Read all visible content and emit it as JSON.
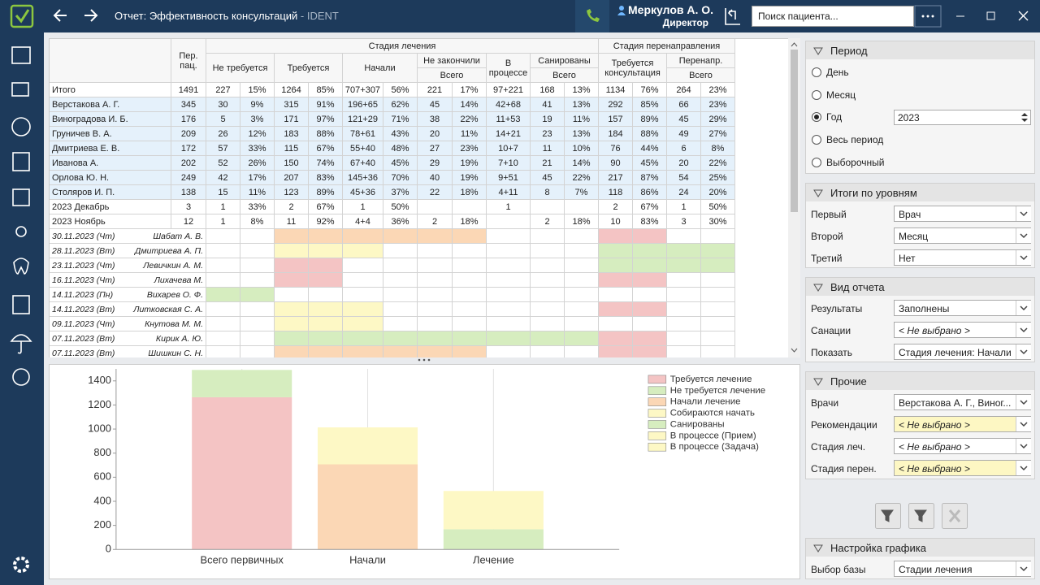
{
  "header": {
    "title": "Отчет: Эффективность консультаций",
    "suffix": "- IDENT",
    "user": "Меркулов А. О.",
    "role": "Директор",
    "search": "Поиск пациента..."
  },
  "table": {
    "head": {
      "per_patients": "Пер. пац.",
      "treatment": "Стадия лечения",
      "redirect": "Стадия перенаправления",
      "not_required": "Не требуется",
      "required": "Требуется",
      "started": "Начали",
      "not_finished": "Не закончили",
      "in_progress": "В процессе",
      "sanitized": "Санированы",
      "consultation": "Требуется консультация",
      "redirected": "Перенапр.",
      "total": "Всего"
    },
    "rows": [
      {
        "name": "Итого",
        "cells": [
          1491,
          227,
          "15%",
          1264,
          "85%",
          "707+307",
          "56%",
          221,
          "17%",
          "97+221",
          168,
          "13%",
          1134,
          "76%",
          264,
          "23%"
        ]
      },
      {
        "name": "Верстакова А. Г.",
        "cells": [
          345,
          30,
          "9%",
          315,
          "91%",
          "196+65",
          "62%",
          45,
          "14%",
          "42+68",
          41,
          "13%",
          292,
          "85%",
          66,
          "23%"
        ]
      },
      {
        "name": "Виноградова И. Б.",
        "cells": [
          176,
          5,
          "3%",
          171,
          "97%",
          "121+29",
          "71%",
          38,
          "22%",
          "11+53",
          19,
          "11%",
          157,
          "89%",
          45,
          "29%"
        ]
      },
      {
        "name": "Груничев В. А.",
        "cells": [
          209,
          26,
          "12%",
          183,
          "88%",
          "78+61",
          "43%",
          20,
          "11%",
          "14+21",
          23,
          "13%",
          184,
          "88%",
          49,
          "27%"
        ]
      },
      {
        "name": "Дмитриева Е. В.",
        "cells": [
          172,
          57,
          "33%",
          115,
          "67%",
          "55+40",
          "48%",
          27,
          "23%",
          "10+7",
          11,
          "10%",
          76,
          "44%",
          6,
          "8%"
        ]
      },
      {
        "name": "Иванова А.",
        "cells": [
          202,
          52,
          "26%",
          150,
          "74%",
          "67+40",
          "45%",
          29,
          "19%",
          "7+10",
          21,
          "14%",
          90,
          "45%",
          20,
          "22%"
        ]
      },
      {
        "name": "Орлова Ю. Н.",
        "cells": [
          249,
          42,
          "17%",
          207,
          "83%",
          "145+36",
          "70%",
          40,
          "19%",
          "9+51",
          45,
          "22%",
          217,
          "87%",
          54,
          "25%"
        ]
      },
      {
        "name": "Столяров И. П.",
        "cells": [
          138,
          15,
          "11%",
          123,
          "89%",
          "45+36",
          "37%",
          22,
          "18%",
          "4+11",
          8,
          "7%",
          118,
          "86%",
          24,
          "20%"
        ]
      },
      {
        "name": "2023 Декабрь",
        "cells": [
          3,
          1,
          "33%",
          2,
          "67%",
          1,
          "50%",
          null,
          null,
          1,
          null,
          null,
          2,
          "67%",
          1,
          "50%"
        ]
      },
      {
        "name": "2023 Ноябрь",
        "cells": [
          12,
          1,
          "8%",
          11,
          "92%",
          "4+4",
          "36%",
          2,
          "18%",
          null,
          2,
          "18%",
          10,
          "83%",
          3,
          "30%"
        ]
      }
    ],
    "details": [
      {
        "date": "30.11.2023 (Чт)",
        "doctor": "Шабат А. В.",
        "fills": [
          null,
          null,
          null,
          "#fbd7b5",
          "#fbd7b5",
          "#fbd7b5",
          "#fbd7b5",
          "#fbd7b5",
          "#fbd7b5",
          null,
          null,
          null,
          "#f4c4c4",
          "#f4c4c4",
          null,
          null
        ]
      },
      {
        "date": "28.11.2023 (Вт)",
        "doctor": "Дмитриева А. П.",
        "fills": [
          null,
          null,
          null,
          "#fdf8c5",
          "#fdf8c5",
          "#fdf8c5",
          null,
          null,
          null,
          null,
          null,
          null,
          "#d6edbf",
          "#d6edbf",
          "#d6edbf",
          "#d6edbf"
        ]
      },
      {
        "date": "23.11.2023 (Чт)",
        "doctor": "Левичкин А. М.",
        "fills": [
          null,
          null,
          null,
          "#f4c4c4",
          "#f4c4c4",
          null,
          null,
          null,
          null,
          null,
          null,
          null,
          "#d6edbf",
          "#d6edbf",
          "#d6edbf",
          "#d6edbf"
        ]
      },
      {
        "date": "16.11.2023 (Чт)",
        "doctor": "Лихачева М.",
        "fills": [
          null,
          null,
          null,
          "#f4c4c4",
          "#f4c4c4",
          null,
          null,
          null,
          null,
          null,
          null,
          null,
          "#f4c4c4",
          "#f4c4c4",
          null,
          null
        ]
      },
      {
        "date": "14.11.2023 (Пн)",
        "doctor": "Вихарев О. Ф.",
        "fills": [
          null,
          "#d6edbf",
          "#d6edbf",
          null,
          null,
          null,
          null,
          null,
          null,
          null,
          null,
          null,
          null,
          null,
          null,
          null
        ]
      },
      {
        "date": "14.11.2023 (Вт)",
        "doctor": "Литковская С. А.",
        "fills": [
          null,
          null,
          null,
          "#fdf8c5",
          "#fdf8c5",
          "#fdf8c5",
          null,
          null,
          null,
          null,
          null,
          null,
          "#f4c4c4",
          "#f4c4c4",
          null,
          null
        ]
      },
      {
        "date": "09.11.2023 (Чт)",
        "doctor": "Кнутова М. М.",
        "fills": [
          null,
          null,
          null,
          "#fdf8c5",
          "#fdf8c5",
          "#fdf8c5",
          null,
          null,
          null,
          null,
          null,
          null,
          null,
          null,
          null,
          null
        ]
      },
      {
        "date": "07.11.2023 (Вт)",
        "doctor": "Кирик А. Ю.",
        "fills": [
          null,
          null,
          null,
          "#d6edbf",
          "#d6edbf",
          "#d6edbf",
          "#d6edbf",
          "#d6edbf",
          "#d6edbf",
          "#d6edbf",
          "#d6edbf",
          "#d6edbf",
          "#f4c4c4",
          "#f4c4c4",
          null,
          null
        ]
      },
      {
        "date": "07.11.2023 (Вт)",
        "doctor": "Шишкин С. Н.",
        "fills": [
          null,
          null,
          null,
          "#fbd7b5",
          "#fbd7b5",
          "#fbd7b5",
          "#fbd7b5",
          "#fbd7b5",
          "#fbd7b5",
          null,
          null,
          null,
          "#f4c4c4",
          "#f4c4c4",
          null,
          null
        ]
      }
    ]
  },
  "chart_data": {
    "type": "bar",
    "stacked": true,
    "categories": [
      "Всего первичных",
      "Начали",
      "Лечение"
    ],
    "series": [
      {
        "name": "Требуется лечение",
        "color": "#f4c4c4",
        "values": [
          1264,
          null,
          null
        ]
      },
      {
        "name": "Не требуется лечение",
        "color": "#d6edbf",
        "values": [
          227,
          null,
          null
        ]
      },
      {
        "name": "Начали лечение",
        "color": "#fbd7b5",
        "values": [
          null,
          707,
          null
        ]
      },
      {
        "name": "Собираются начать",
        "color": "#fdf8c5",
        "values": [
          null,
          307,
          null
        ]
      },
      {
        "name": "Санированы",
        "color": "#d6edbf",
        "values": [
          null,
          null,
          168
        ]
      },
      {
        "name": "В процессе (Прием)",
        "color": "#fdf8c5",
        "values": [
          null,
          null,
          97
        ]
      },
      {
        "name": "В процессе (Задача)",
        "color": "#fdf8c5",
        "values": [
          null,
          null,
          221
        ]
      }
    ],
    "ylim": [
      0,
      1500
    ],
    "yticks": [
      0,
      200,
      400,
      600,
      800,
      1000,
      1200,
      1400
    ],
    "grid": true,
    "legend": "upper right"
  },
  "panel": {
    "period": {
      "title": "Период",
      "options": [
        "День",
        "Месяц",
        "Год",
        "Весь период",
        "Выборочный"
      ],
      "selected": 2,
      "year": 2023
    },
    "levels": {
      "title": "Итоги по уровням",
      "fields": [
        {
          "label": "Первый",
          "value": "Врач"
        },
        {
          "label": "Второй",
          "value": "Месяц"
        },
        {
          "label": "Третий",
          "value": "Нет"
        }
      ]
    },
    "view": {
      "title": "Вид отчета",
      "fields": [
        {
          "label": "Результаты",
          "value": "Заполнены"
        },
        {
          "label": "Санации",
          "value": "< Не выбрано >"
        },
        {
          "label": "Показать",
          "value": "Стадия лечения: Начали"
        }
      ]
    },
    "other": {
      "title": "Прочие",
      "fields": [
        {
          "label": "Врачи",
          "value": "Верстакова А. Г., Виног..."
        },
        {
          "label": "Рекомендации",
          "value": "< Не выбрано >",
          "highlight": true
        },
        {
          "label": "Стадия леч.",
          "value": "< Не выбрано >"
        },
        {
          "label": "Стадия перен.",
          "value": "< Не выбрано >",
          "highlight": true
        }
      ]
    },
    "chart_settings": {
      "title": "Настройка графика",
      "fields": [
        {
          "label": "Выбор базы",
          "value": "Стадии лечения"
        }
      ]
    }
  }
}
